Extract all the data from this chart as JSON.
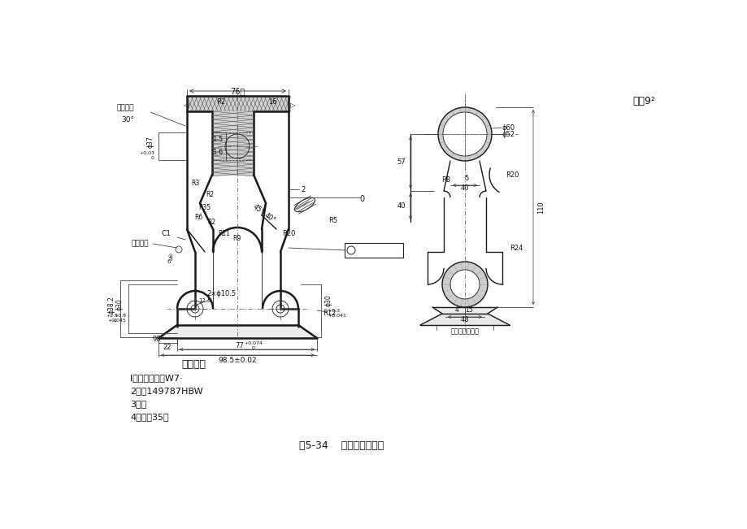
{
  "title": "图5-34    后钢板弹簧吊耳",
  "top_right_text": "其余9²",
  "background_color": "#ffffff",
  "tech_requirements_title": "技术要求",
  "tech_requirements": [
    "l的造起樟料度W7·",
    "2硬度149787HBW",
    "3涂渣",
    "4材料，35新"
  ],
  "line_color": "#1a1a1a",
  "dim_color": "#333333",
  "gray_fill": "#c8c8c8",
  "hatch_color": "#555555"
}
